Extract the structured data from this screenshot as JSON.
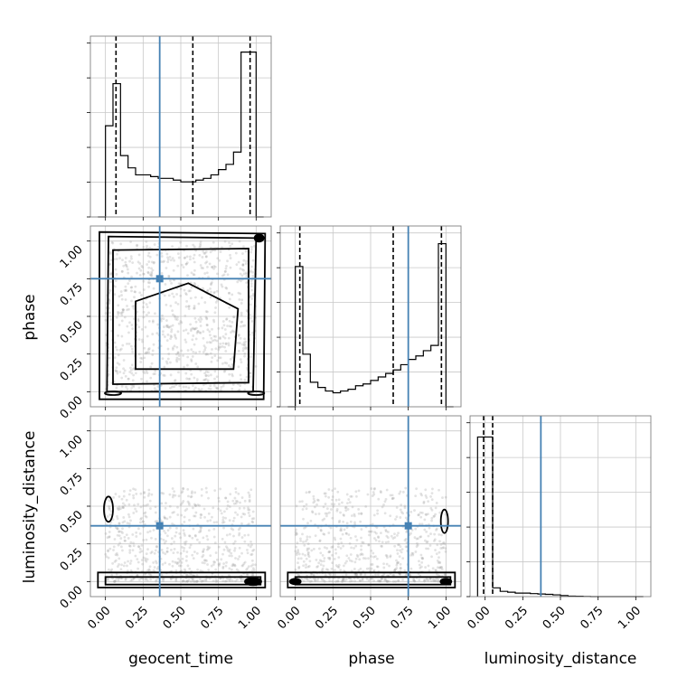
{
  "chart_data": {
    "type": "corner",
    "parameters": [
      "geocent_time",
      "phase",
      "luminosity_distance"
    ],
    "truth": {
      "geocent_time": 0.36,
      "phase": 0.75,
      "luminosity_distance": 0.37
    },
    "colors": {
      "truth": "#4682b4",
      "hist": "#000000",
      "grid": "#c8c8c8",
      "scatter": "#9a9a9a"
    },
    "axis_range": [
      -0.1,
      1.1
    ],
    "ticks": [
      "0.00",
      "0.25",
      "0.50",
      "0.75",
      "1.00"
    ],
    "tick_values": [
      0,
      0.25,
      0.5,
      0.75,
      1.0
    ],
    "grid": true,
    "marginals": [
      {
        "param": "geocent_time",
        "bin_edges": [
          -0.05,
          0,
          0.05,
          0.1,
          0.15,
          0.2,
          0.25,
          0.3,
          0.35,
          0.4,
          0.45,
          0.5,
          0.55,
          0.6,
          0.65,
          0.7,
          0.75,
          0.8,
          0.85,
          0.9,
          0.95,
          1.0,
          1.05
        ],
        "counts": [
          0,
          0.52,
          0.76,
          0.35,
          0.28,
          0.24,
          0.24,
          0.23,
          0.22,
          0.22,
          0.21,
          0.2,
          0.2,
          0.21,
          0.22,
          0.24,
          0.27,
          0.3,
          0.37,
          0.94,
          0.94,
          0
        ],
        "quantiles": [
          0.07,
          0.58,
          0.96
        ],
        "ylim": [
          0,
          1.0
        ]
      },
      {
        "param": "phase",
        "bin_edges": [
          -0.05,
          0,
          0.05,
          0.1,
          0.15,
          0.2,
          0.25,
          0.3,
          0.35,
          0.4,
          0.45,
          0.5,
          0.55,
          0.6,
          0.65,
          0.7,
          0.75,
          0.8,
          0.85,
          0.9,
          0.95,
          1.0,
          1.05
        ],
        "counts": [
          0,
          0.8,
          0.3,
          0.14,
          0.11,
          0.09,
          0.08,
          0.09,
          0.1,
          0.12,
          0.13,
          0.15,
          0.17,
          0.19,
          0.21,
          0.24,
          0.27,
          0.29,
          0.32,
          0.35,
          0.93,
          0
        ],
        "quantiles": [
          0.03,
          0.65,
          0.97
        ],
        "ylim": [
          0,
          1.0
        ]
      },
      {
        "param": "luminosity_distance",
        "bin_edges": [
          -0.05,
          0,
          0.05,
          0.1,
          0.15,
          0.2,
          0.25,
          0.3,
          0.35,
          0.4,
          0.45,
          0.5,
          0.55,
          0.6,
          0.65,
          0.7,
          0.75,
          0.8,
          0.85,
          0.9,
          0.95,
          1.0,
          1.05
        ],
        "counts": [
          0.91,
          0.91,
          0.05,
          0.03,
          0.025,
          0.02,
          0.02,
          0.017,
          0.015,
          0.013,
          0.01,
          0.006,
          0.003,
          0.002,
          0.001,
          0,
          0,
          0,
          0,
          0,
          0,
          0
        ],
        "quantiles": [
          -0.01,
          0.05
        ],
        "ylim": [
          0,
          1.0
        ]
      }
    ],
    "joint_panels": [
      {
        "x": "geocent_time",
        "y": "phase",
        "contours": "density contours with peaks near corners (0,0), (1,0), (1,1)"
      },
      {
        "x": "geocent_time",
        "y": "luminosity_distance",
        "contours": "concentrated near luminosity_distance 0, peak at geocent_time 1.0"
      },
      {
        "x": "phase",
        "y": "luminosity_distance",
        "contours": "concentrated near luminosity_distance 0, peaks at phase 0 and 1"
      }
    ]
  }
}
